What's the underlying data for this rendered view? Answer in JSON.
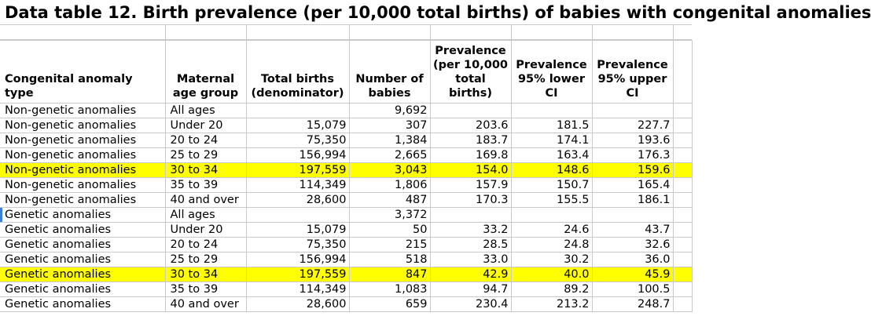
{
  "title": "Data table 12. Birth prevalence (per 10,000 total births) of babies with congenital anomalies",
  "headers": [
    "Congenital anomaly type",
    "Maternal age group",
    "Total births (denominator)",
    "Number of babies",
    "Prevalence (per 10,000 total births)",
    "Prevalence 95% lower CI",
    "Prevalence 95% upper CI"
  ],
  "rows": [
    {
      "type": "Non-genetic anomalies",
      "age": "All ages",
      "births": "",
      "babies": "9,692",
      "prev": "",
      "lower": "",
      "upper": "",
      "highlight": false
    },
    {
      "type": "Non-genetic anomalies",
      "age": "Under 20",
      "births": "15,079",
      "babies": "307",
      "prev": "203.6",
      "lower": "181.5",
      "upper": "227.7",
      "highlight": false
    },
    {
      "type": "Non-genetic anomalies",
      "age": "20 to 24",
      "births": "75,350",
      "babies": "1,384",
      "prev": "183.7",
      "lower": "174.1",
      "upper": "193.6",
      "highlight": false
    },
    {
      "type": "Non-genetic anomalies",
      "age": "25 to 29",
      "births": "156,994",
      "babies": "2,665",
      "prev": "169.8",
      "lower": "163.4",
      "upper": "176.3",
      "highlight": false
    },
    {
      "type": "Non-genetic anomalies",
      "age": "30 to 34",
      "births": "197,559",
      "babies": "3,043",
      "prev": "154.0",
      "lower": "148.6",
      "upper": "159.6",
      "highlight": true
    },
    {
      "type": "Non-genetic anomalies",
      "age": "35 to 39",
      "births": "114,349",
      "babies": "1,806",
      "prev": "157.9",
      "lower": "150.7",
      "upper": "165.4",
      "highlight": false
    },
    {
      "type": "Non-genetic anomalies",
      "age": "40 and over",
      "births": "28,600",
      "babies": "487",
      "prev": "170.3",
      "lower": "155.5",
      "upper": "186.1",
      "highlight": false
    },
    {
      "type": "Genetic anomalies",
      "age": "All ages",
      "births": "",
      "babies": "3,372",
      "prev": "",
      "lower": "",
      "upper": "",
      "highlight": false
    },
    {
      "type": "Genetic anomalies",
      "age": "Under 20",
      "births": "15,079",
      "babies": "50",
      "prev": "33.2",
      "lower": "24.6",
      "upper": "43.7",
      "highlight": false
    },
    {
      "type": "Genetic anomalies",
      "age": "20 to 24",
      "births": "75,350",
      "babies": "215",
      "prev": "28.5",
      "lower": "24.8",
      "upper": "32.6",
      "highlight": false
    },
    {
      "type": "Genetic anomalies",
      "age": "25 to 29",
      "births": "156,994",
      "babies": "518",
      "prev": "33.0",
      "lower": "30.2",
      "upper": "36.0",
      "highlight": false
    },
    {
      "type": "Genetic anomalies",
      "age": "30 to 34",
      "births": "197,559",
      "babies": "847",
      "prev": "42.9",
      "lower": "40.0",
      "upper": "45.9",
      "highlight": true
    },
    {
      "type": "Genetic anomalies",
      "age": "35 to 39",
      "births": "114,349",
      "babies": "1,083",
      "prev": "94.7",
      "lower": "89.2",
      "upper": "100.5",
      "highlight": false
    },
    {
      "type": "Genetic anomalies",
      "age": "40 and over",
      "births": "28,600",
      "babies": "659",
      "prev": "230.4",
      "lower": "213.2",
      "upper": "248.7",
      "highlight": false
    }
  ],
  "colors": {
    "highlight": "#ffff00",
    "gridline": "#c9c9c9",
    "selection": "#3c7fd6"
  }
}
